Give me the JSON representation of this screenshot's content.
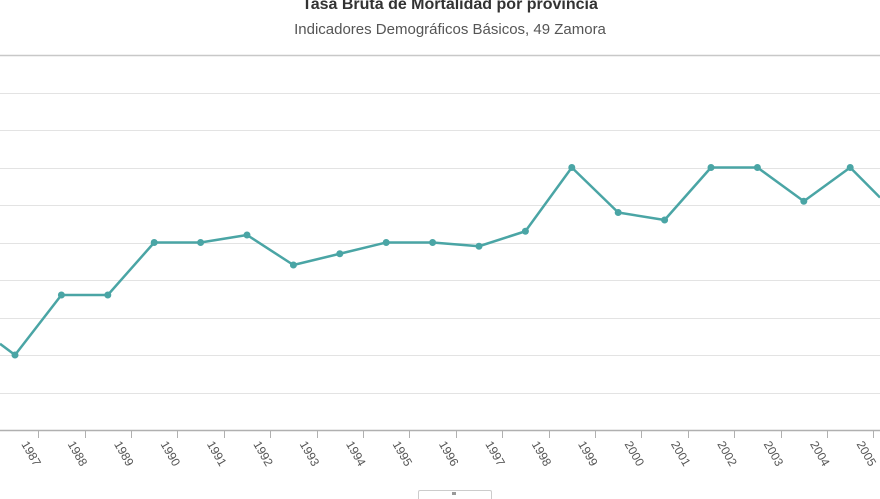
{
  "chart_data": {
    "type": "line",
    "title": "Tasa Bruta de Mortalidad por provincia",
    "subtitle": "Indicadores Demográficos Básicos, 49 Zamora",
    "categories": [
      "1987",
      "1988",
      "1989",
      "1990",
      "1991",
      "1992",
      "1993",
      "1994",
      "1995",
      "1996",
      "1997",
      "1998",
      "1999",
      "2000",
      "2001",
      "2002",
      "2003",
      "2004",
      "2005"
    ],
    "series": [
      {
        "values": [
          9.0,
          10.6,
          10.6,
          12.0,
          12.0,
          12.2,
          11.4,
          11.7,
          12.0,
          12.0,
          11.9,
          12.3,
          14.0,
          12.8,
          12.6,
          14.0,
          14.0,
          13.1,
          14.0
        ],
        "color": "#4aa5a5"
      }
    ],
    "ylim": [
      7,
      17
    ],
    "grid": true,
    "xlabel": "",
    "ylabel": ""
  }
}
